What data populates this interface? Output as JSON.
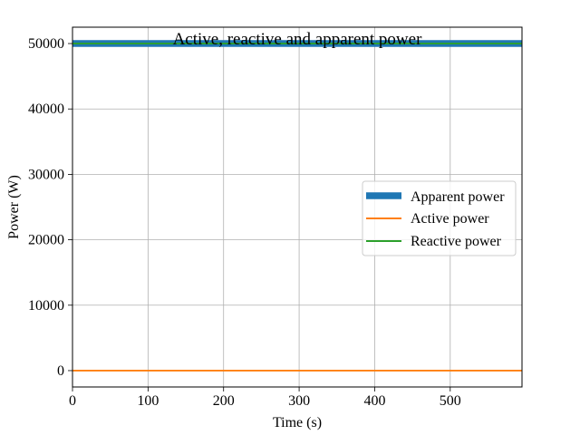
{
  "chart_data": {
    "type": "line",
    "title": "Active, reactive and apparent power",
    "xlabel": "Time (s)",
    "ylabel": "Power (W)",
    "xlim": [
      0,
      595
    ],
    "ylim": [
      -2500,
      52500
    ],
    "x_ticks": [
      0,
      100,
      200,
      300,
      400,
      500
    ],
    "y_ticks": [
      0,
      10000,
      20000,
      30000,
      40000,
      50000
    ],
    "x_tick_labels": [
      "0",
      "100",
      "200",
      "300",
      "400",
      "500"
    ],
    "y_tick_labels": [
      "0",
      "10000",
      "20000",
      "30000",
      "40000",
      "50000"
    ],
    "grid": true,
    "legend_position": "center-right",
    "series": [
      {
        "name": "Apparent power",
        "color": "#1f77b4",
        "line": "thick",
        "x": [
          0,
          595
        ],
        "y": [
          50000,
          50000
        ]
      },
      {
        "name": "Active power",
        "color": "#ff7f0e",
        "line": "normal",
        "x": [
          0,
          595
        ],
        "y": [
          0,
          0
        ]
      },
      {
        "name": "Reactive power",
        "color": "#2ca02c",
        "line": "normal",
        "x": [
          0,
          595
        ],
        "y": [
          50000,
          50000
        ]
      }
    ]
  }
}
